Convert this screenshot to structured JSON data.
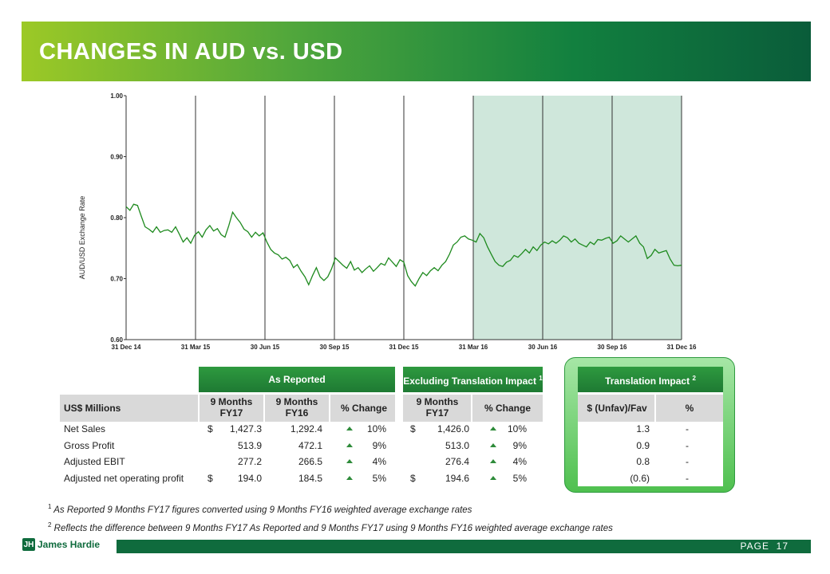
{
  "page_title": "CHANGES IN AUD vs. USD",
  "colors": {
    "banner_start": "#9cc926",
    "banner_end": "#0a5c3a",
    "line": "#1e8a1e",
    "shade": "#cfe7db",
    "header_green": "#2e9a3f"
  },
  "chart_data": {
    "type": "line",
    "ylabel": "AUD/USD Exchange Rate",
    "ylim": [
      0.6,
      1.0
    ],
    "y_ticks": [
      "1.00",
      "0.90",
      "0.80",
      "0.70",
      "0.60"
    ],
    "y_tick_values": [
      1.0,
      0.9,
      0.8,
      0.7,
      0.6
    ],
    "x_ticks": [
      "31 Dec 14",
      "31 Mar 15",
      "30 Jun 15",
      "30 Sep 15",
      "31 Dec 15",
      "31 Mar 16",
      "30 Jun 16",
      "30 Sep 16",
      "31 Dec 16"
    ],
    "shaded_range": [
      "31 Mar 16",
      "31 Dec 16"
    ],
    "series": [
      {
        "values": [
          0.818,
          0.812,
          0.822,
          0.82,
          0.802,
          0.785,
          0.781,
          0.776,
          0.785,
          0.776,
          0.779,
          0.78,
          0.776,
          0.785,
          0.773,
          0.76,
          0.767,
          0.758,
          0.771,
          0.777,
          0.768,
          0.78,
          0.787,
          0.778,
          0.782,
          0.772,
          0.768,
          0.787,
          0.809,
          0.8,
          0.792,
          0.781,
          0.777,
          0.768,
          0.776,
          0.77,
          0.775,
          0.76,
          0.748,
          0.742,
          0.739,
          0.732,
          0.735,
          0.73,
          0.718,
          0.723,
          0.712,
          0.703,
          0.69,
          0.705,
          0.718,
          0.703,
          0.697,
          0.703,
          0.716,
          0.734,
          0.728,
          0.722,
          0.717,
          0.728,
          0.714,
          0.718,
          0.71,
          0.716,
          0.721,
          0.712,
          0.718,
          0.725,
          0.722,
          0.734,
          0.727,
          0.72,
          0.731,
          0.727,
          0.705,
          0.695,
          0.688,
          0.7,
          0.71,
          0.705,
          0.713,
          0.718,
          0.713,
          0.722,
          0.728,
          0.74,
          0.755,
          0.76,
          0.768,
          0.77,
          0.765,
          0.763,
          0.76,
          0.774,
          0.767,
          0.752,
          0.74,
          0.728,
          0.722,
          0.72,
          0.727,
          0.73,
          0.738,
          0.735,
          0.741,
          0.748,
          0.742,
          0.752,
          0.746,
          0.755,
          0.76,
          0.757,
          0.762,
          0.758,
          0.763,
          0.77,
          0.767,
          0.76,
          0.765,
          0.758,
          0.755,
          0.752,
          0.76,
          0.756,
          0.764,
          0.763,
          0.766,
          0.768,
          0.758,
          0.762,
          0.77,
          0.765,
          0.76,
          0.765,
          0.77,
          0.758,
          0.752,
          0.733,
          0.738,
          0.748,
          0.742,
          0.744,
          0.746,
          0.732,
          0.722,
          0.721,
          0.722
        ]
      }
    ]
  },
  "table": {
    "as_reported_header": "As Reported",
    "excl_header": "Excluding Translation Impact",
    "excl_header_sup": "1",
    "trans_header": "Translation Impact",
    "trans_header_sup": "2",
    "row_label_header": "US$ Millions",
    "col_9m_fy17": "9 Months FY17",
    "col_9m_fy16": "9 Months FY16",
    "col_pct_change": "% Change",
    "col_excl_9m_fy17": "9 Months FY17",
    "col_excl_pct_change": "% Change",
    "col_unfav_fav": "$ (Unfav)/Fav",
    "col_trans_pct": "%",
    "rows": [
      {
        "label": "Net Sales",
        "cur1": "$",
        "fy17": "1,427.3",
        "fy16": "1,292.4",
        "pct": "10%",
        "cur2": "$",
        "excl_fy17": "1,426.0",
        "excl_pct": "10%",
        "trans": "1.3",
        "trans_pct": "-"
      },
      {
        "label": "Gross Profit",
        "cur1": "",
        "fy17": "513.9",
        "fy16": "472.1",
        "pct": "9%",
        "cur2": "",
        "excl_fy17": "513.0",
        "excl_pct": "9%",
        "trans": "0.9",
        "trans_pct": "-"
      },
      {
        "label": "Adjusted EBIT",
        "cur1": "",
        "fy17": "277.2",
        "fy16": "266.5",
        "pct": "4%",
        "cur2": "",
        "excl_fy17": "276.4",
        "excl_pct": "4%",
        "trans": "0.8",
        "trans_pct": "-"
      },
      {
        "label": "Adjusted net operating profit",
        "cur1": "$",
        "fy17": "194.0",
        "fy16": "184.5",
        "pct": "5%",
        "cur2": "$",
        "excl_fy17": "194.6",
        "excl_pct": "5%",
        "trans": "(0.6)",
        "trans_pct": "-"
      }
    ]
  },
  "footnotes": [
    {
      "num": "1",
      "text": "As Reported 9 Months FY17 figures converted using 9 Months FY16 weighted average exchange rates"
    },
    {
      "num": "2",
      "text": "Reflects the difference between 9 Months FY17 As Reported and 9 Months FY17 using 9 Months FY16 weighted average exchange rates"
    }
  ],
  "footer": {
    "brand": "James Hardie",
    "logo_mark": "JH",
    "page_label": "PAGE",
    "page_number": "17"
  }
}
